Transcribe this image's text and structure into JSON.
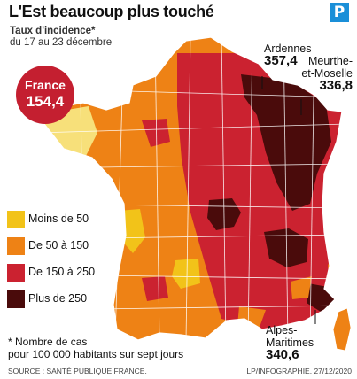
{
  "header": {
    "title": "L'Est beaucoup plus touché",
    "subtitle_bold": "Taux d'incidence*",
    "subtitle_period": "du 17 au 23 décembre",
    "logo_letter": "P"
  },
  "national": {
    "label": "France",
    "value": "154,4"
  },
  "legend": [
    {
      "label": "Moins de 50",
      "color": "#f2c319"
    },
    {
      "label": "De 50 à 150",
      "color": "#ee8215"
    },
    {
      "label": "De 150 à 250",
      "color": "#cb2230"
    },
    {
      "label": "Plus de 250",
      "color": "#4a0b0b"
    }
  ],
  "callouts": {
    "ardennes": {
      "name": "Ardennes",
      "value": "357,4"
    },
    "meurthe": {
      "name_line1": "Meurthe-",
      "name_line2": "et-Moselle",
      "value": "336,8"
    },
    "alpes": {
      "name_line1": "Alpes-",
      "name_line2": "Maritimes",
      "value": "340,6"
    }
  },
  "footnote": {
    "line1": "* Nombre de cas",
    "line2": "pour 100 000 habitants sur sept jours"
  },
  "source": "SOURCE : SANTÉ PUBLIQUE FRANCE.",
  "credit": "LP/INFOGRAPHIE.  27/12/2020",
  "colors": {
    "light_yellow": "#f7e07a",
    "stroke": "#ffffff"
  }
}
